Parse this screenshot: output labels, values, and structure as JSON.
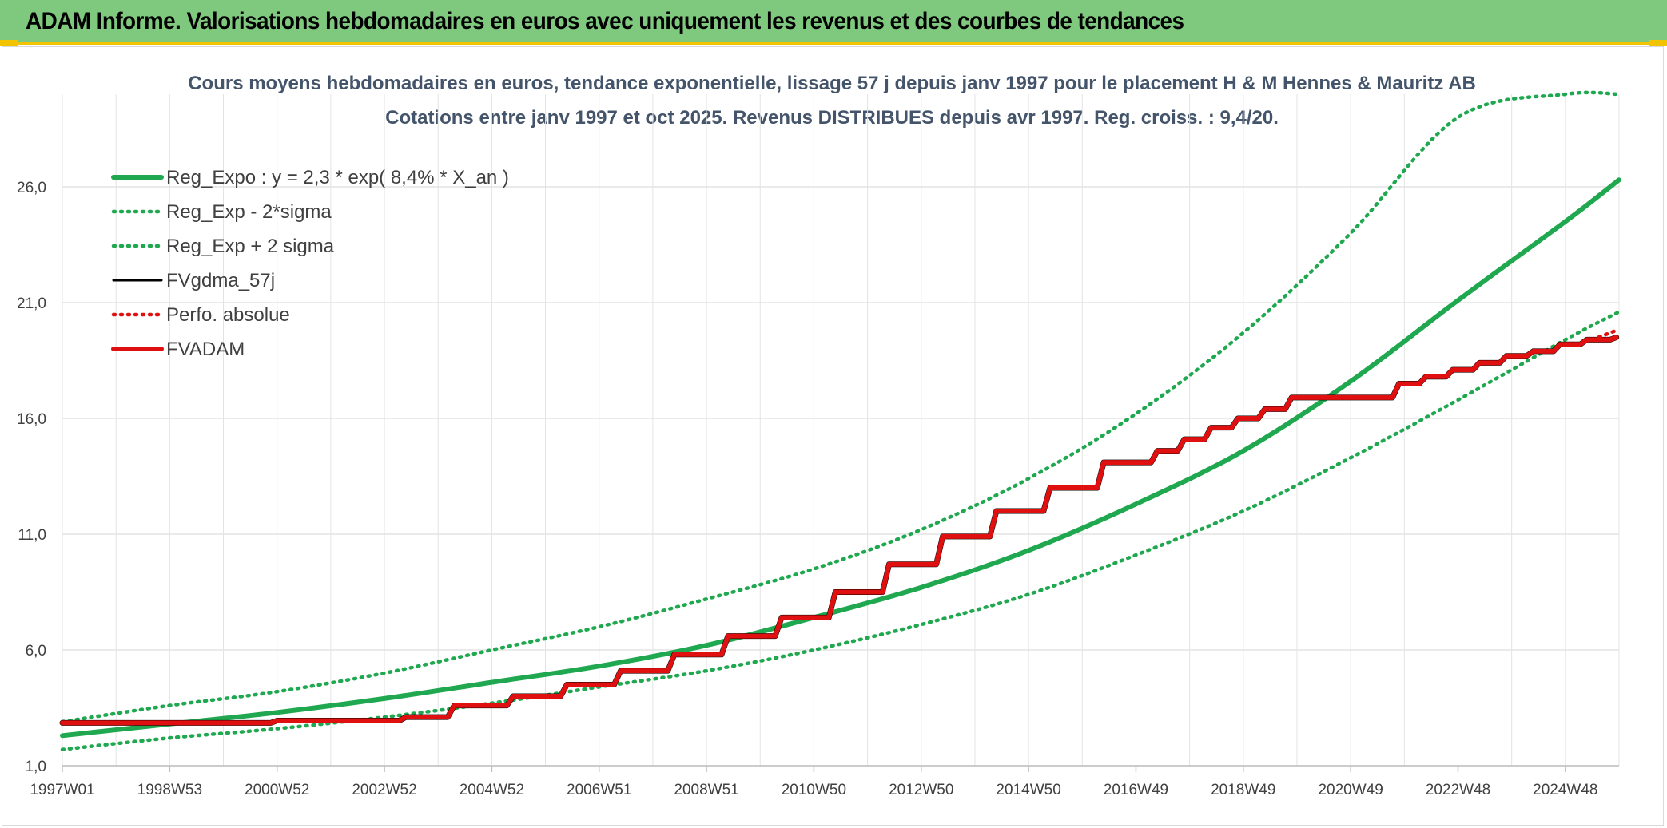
{
  "banner": {
    "title": "ADAM Informe. Valorisations hebdomadaires en euros avec uniquement les revenus et des courbes de tendances"
  },
  "colors": {
    "banner_bg": "#7fc97f",
    "accent_yellow": "#f2c400",
    "trend_green": "#1fa84f",
    "fvadam_red": "#e01010",
    "fvgdma_black": "#000000",
    "grid": "#e3e3e3",
    "title_text": "#44546a"
  },
  "chart_data": {
    "type": "line",
    "title": "Cours moyens hebdomadaires en euros, tendance exponentielle, lissage 57 j depuis janv 1997 pour le placement H & M Hennes & Mauritz AB",
    "subtitle": "Cotations entre janv 1997 et oct 2025. Revenus DISTRIBUES depuis avr 1997. Reg. croiss. : 9,4/20.",
    "xlabel": "",
    "ylabel": "",
    "ylim": [
      1,
      30
    ],
    "y_ticks": [
      "1,0",
      "6,0",
      "11,0",
      "16,0",
      "21,0",
      "26,0"
    ],
    "y_tick_values": [
      1,
      6,
      11,
      16,
      21,
      26
    ],
    "x_ticks": [
      "1997W01",
      "1998W53",
      "2000W52",
      "2002W52",
      "2004W52",
      "2006W51",
      "2008W51",
      "2010W50",
      "2012W50",
      "2014W50",
      "2016W49",
      "2018W49",
      "2020W49",
      "2022W48",
      "2024W48"
    ],
    "x_tick_years": [
      1997.0,
      1999.0,
      2001.0,
      2003.0,
      2005.0,
      2007.0,
      2009.0,
      2011.0,
      2013.0,
      2015.0,
      2017.0,
      2019.0,
      2021.0,
      2023.0,
      2025.0
    ],
    "xlim": [
      1997.0,
      2026.0
    ],
    "grid": true,
    "legend_position": "top-left",
    "legend": [
      {
        "label": "Reg_Expo : y = 2,3 * exp( 8,4% *  X_an )",
        "style": "solid-thick",
        "color": "#1fa84f"
      },
      {
        "label": "Reg_Exp - 2*sigma",
        "style": "dotted",
        "color": "#1fa84f"
      },
      {
        "label": "Reg_Exp + 2 sigma",
        "style": "dotted",
        "color": "#1fa84f"
      },
      {
        "label": "FVgdma_57j",
        "style": "solid",
        "color": "#000000"
      },
      {
        "label": "Perfo. absolue",
        "style": "dotted",
        "color": "#e01010"
      },
      {
        "label": "FVADAM",
        "style": "solid-thick",
        "color": "#e01010"
      }
    ],
    "series": [
      {
        "name": "Reg_Expo : y = 2,3 * exp( 8,4% *  X_an )",
        "x": [
          1997,
          1999,
          2001,
          2003,
          2005,
          2007,
          2009,
          2011,
          2013,
          2015,
          2017,
          2019,
          2021,
          2023,
          2025,
          2026
        ],
        "y": [
          2.3,
          2.8,
          3.3,
          3.9,
          4.6,
          5.3,
          6.2,
          7.4,
          8.7,
          10.3,
          12.3,
          14.6,
          17.6,
          21.1,
          24.5,
          26.3
        ]
      },
      {
        "name": "Reg_Exp - 2*sigma",
        "x": [
          1997,
          1999,
          2001,
          2003,
          2005,
          2007,
          2009,
          2011,
          2013,
          2015,
          2017,
          2019,
          2021,
          2023,
          2025,
          2026
        ],
        "y": [
          1.7,
          2.2,
          2.6,
          3.1,
          3.7,
          4.4,
          5.1,
          6.0,
          7.1,
          8.4,
          10.1,
          12.0,
          14.3,
          16.8,
          19.4,
          20.6
        ]
      },
      {
        "name": "Reg_Exp + 2 sigma",
        "x": [
          1997,
          1999,
          2001,
          2003,
          2005,
          2007,
          2009,
          2011,
          2013,
          2015,
          2017,
          2019,
          2021,
          2023,
          2025,
          2026
        ],
        "y": [
          2.9,
          3.6,
          4.2,
          5.0,
          6.0,
          7.0,
          8.2,
          9.5,
          11.2,
          13.4,
          16.2,
          19.7,
          24.0,
          29.0,
          30.0,
          30.0
        ]
      },
      {
        "name": "FVgdma_57j",
        "steps": [
          [
            1997.0,
            2.85
          ],
          [
            2001.0,
            2.95
          ],
          [
            2003.4,
            3.1
          ],
          [
            2004.3,
            3.6
          ],
          [
            2005.4,
            4.0
          ],
          [
            2006.4,
            4.5
          ],
          [
            2007.4,
            5.1
          ],
          [
            2008.4,
            5.8
          ],
          [
            2009.4,
            6.6
          ],
          [
            2010.4,
            7.4
          ],
          [
            2011.4,
            8.5
          ],
          [
            2012.4,
            9.7
          ],
          [
            2013.4,
            10.9
          ],
          [
            2014.4,
            12.0
          ],
          [
            2015.4,
            13.0
          ],
          [
            2016.4,
            14.1
          ],
          [
            2017.4,
            14.6
          ],
          [
            2017.9,
            15.1
          ],
          [
            2018.4,
            15.6
          ],
          [
            2018.9,
            16.0
          ],
          [
            2019.4,
            16.4
          ],
          [
            2019.9,
            16.9
          ],
          [
            2021.9,
            17.5
          ],
          [
            2022.4,
            17.8
          ],
          [
            2022.9,
            18.1
          ],
          [
            2023.4,
            18.4
          ],
          [
            2023.9,
            18.7
          ],
          [
            2024.4,
            18.9
          ],
          [
            2024.9,
            19.2
          ],
          [
            2025.4,
            19.4
          ],
          [
            2025.95,
            19.5
          ]
        ]
      },
      {
        "name": "Perfo. absolue",
        "x": [
          2025.5,
          2025.95
        ],
        "y": [
          19.4,
          19.8
        ]
      },
      {
        "name": "FVADAM",
        "steps": [
          [
            1997.0,
            2.85
          ],
          [
            2001.0,
            2.95
          ],
          [
            2003.4,
            3.1
          ],
          [
            2004.3,
            3.6
          ],
          [
            2005.4,
            4.0
          ],
          [
            2006.4,
            4.5
          ],
          [
            2007.4,
            5.1
          ],
          [
            2008.4,
            5.8
          ],
          [
            2009.4,
            6.6
          ],
          [
            2010.4,
            7.4
          ],
          [
            2011.4,
            8.5
          ],
          [
            2012.4,
            9.7
          ],
          [
            2013.4,
            10.9
          ],
          [
            2014.4,
            12.0
          ],
          [
            2015.4,
            13.0
          ],
          [
            2016.4,
            14.1
          ],
          [
            2017.4,
            14.6
          ],
          [
            2017.9,
            15.1
          ],
          [
            2018.4,
            15.6
          ],
          [
            2018.9,
            16.0
          ],
          [
            2019.4,
            16.4
          ],
          [
            2019.9,
            16.9
          ],
          [
            2021.9,
            17.5
          ],
          [
            2022.4,
            17.8
          ],
          [
            2022.9,
            18.1
          ],
          [
            2023.4,
            18.4
          ],
          [
            2023.9,
            18.7
          ],
          [
            2024.4,
            18.9
          ],
          [
            2024.9,
            19.2
          ],
          [
            2025.4,
            19.4
          ],
          [
            2025.95,
            19.5
          ]
        ]
      }
    ]
  }
}
